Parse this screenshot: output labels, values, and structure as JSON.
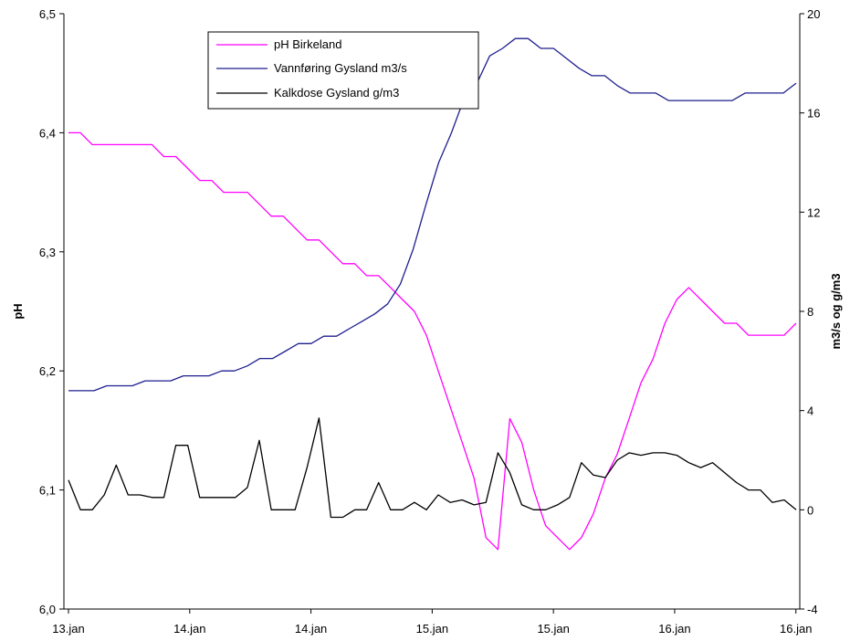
{
  "chart_data": {
    "type": "line",
    "title": "",
    "xlabel": "",
    "ylabel": "pH",
    "y2label": "m3/s og g/m3",
    "ylim": [
      6.0,
      6.5
    ],
    "y2lim": [
      -4,
      20
    ],
    "x_tick_labels": [
      "13.jan",
      "14.jan",
      "14.jan",
      "15.jan",
      "15.jan",
      "16.jan",
      "16.jan"
    ],
    "y_tick_labels": [
      "6,0",
      "6,1",
      "6,2",
      "6,3",
      "6,4",
      "6,5"
    ],
    "y2_tick_labels": [
      "-4",
      "0",
      "4",
      "8",
      "12",
      "16",
      "20"
    ],
    "legend": {
      "placement": "top-left"
    },
    "grid": false,
    "series": [
      {
        "name": "pH Birkeland",
        "axis": "left",
        "color": "#ff00ff",
        "values": [
          6.4,
          6.4,
          6.39,
          6.39,
          6.39,
          6.39,
          6.39,
          6.39,
          6.38,
          6.38,
          6.37,
          6.36,
          6.36,
          6.35,
          6.35,
          6.35,
          6.34,
          6.33,
          6.33,
          6.32,
          6.31,
          6.31,
          6.3,
          6.29,
          6.29,
          6.28,
          6.28,
          6.27,
          6.26,
          6.25,
          6.23,
          6.2,
          6.17,
          6.14,
          6.11,
          6.06,
          6.05,
          6.16,
          6.14,
          6.1,
          6.07,
          6.06,
          6.05,
          6.06,
          6.08,
          6.11,
          6.13,
          6.16,
          6.19,
          6.21,
          6.24,
          6.26,
          6.27,
          6.26,
          6.25,
          6.24,
          6.24,
          6.23,
          6.23,
          6.23,
          6.23,
          6.24
        ]
      },
      {
        "name": "Vannføring Gysland m3/s",
        "axis": "right",
        "color": "#1f1f8f",
        "values": [
          4.8,
          4.8,
          4.8,
          5.0,
          5.0,
          5.0,
          5.2,
          5.2,
          5.2,
          5.4,
          5.4,
          5.4,
          5.6,
          5.6,
          5.8,
          6.1,
          6.1,
          6.4,
          6.7,
          6.7,
          7.0,
          7.0,
          7.3,
          7.6,
          7.9,
          8.3,
          9.1,
          10.5,
          12.3,
          14.0,
          15.2,
          16.6,
          17.2,
          18.3,
          18.6,
          19.0,
          19.0,
          18.6,
          18.6,
          18.2,
          17.8,
          17.5,
          17.5,
          17.1,
          16.8,
          16.8,
          16.8,
          16.5,
          16.5,
          16.5,
          16.5,
          16.5,
          16.5,
          16.8,
          16.8,
          16.8,
          16.8,
          17.2
        ]
      },
      {
        "name": "Kalkdose Gysland g/m3",
        "axis": "right",
        "color": "#000000",
        "values": [
          1.2,
          0.0,
          0.0,
          0.6,
          1.8,
          0.6,
          0.6,
          0.5,
          0.5,
          2.6,
          2.6,
          0.5,
          0.5,
          0.5,
          0.5,
          0.9,
          2.8,
          0.0,
          0.0,
          0.0,
          1.7,
          3.7,
          -0.3,
          -0.3,
          0.0,
          0.0,
          1.1,
          0.0,
          0.0,
          0.3,
          0.0,
          0.6,
          0.3,
          0.4,
          0.2,
          0.3,
          2.3,
          1.5,
          0.2,
          0.0,
          0.0,
          0.2,
          0.5,
          1.9,
          1.4,
          1.3,
          2.0,
          2.3,
          2.2,
          2.3,
          2.3,
          2.2,
          1.9,
          1.7,
          1.9,
          1.5,
          1.1,
          0.8,
          0.8,
          0.3,
          0.4,
          0.0
        ]
      }
    ]
  }
}
